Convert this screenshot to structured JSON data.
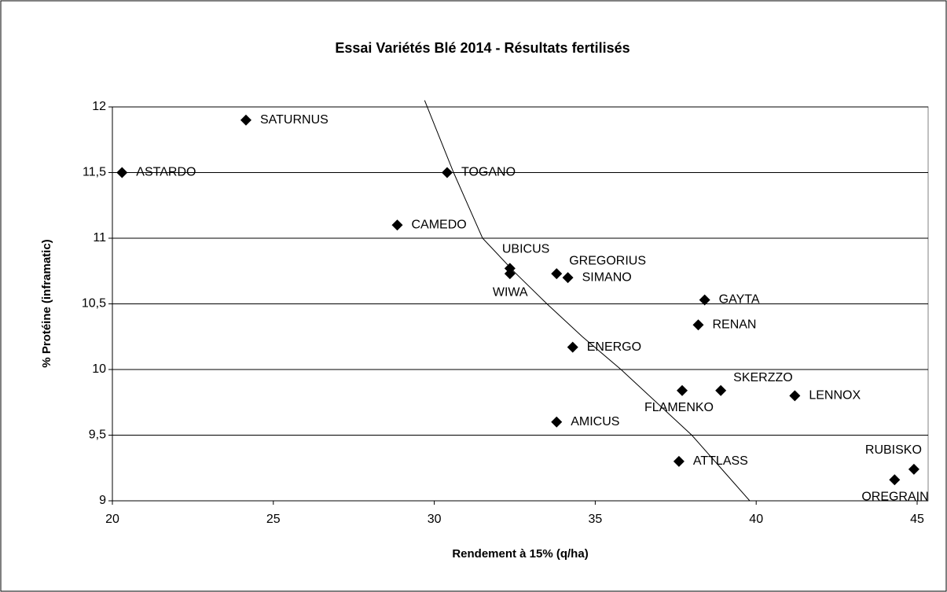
{
  "chart_data": {
    "type": "scatter",
    "title": "Essai Variétés Blé 2014 - Résultats  fertilisés",
    "x_label": "Rendement à 15% (q/ha)",
    "y_label": "% Protéine (inframatic)",
    "xlim": [
      20,
      45
    ],
    "xticks": [
      20,
      25,
      30,
      35,
      40,
      45
    ],
    "ylim": [
      9,
      12
    ],
    "yticks": [
      9,
      {
        "value": 9.5,
        "label": "9,5"
      },
      10,
      {
        "value": 10.5,
        "label": "10,5"
      },
      11,
      {
        "value": 11.5,
        "label": "11,5"
      },
      12
    ],
    "grid": true,
    "series": [
      {
        "color": "#000000",
        "labels": [
          "ASTARDO",
          "SATURNUS",
          "TOGANO",
          "CAMEDO",
          "UBICUS",
          "WIWA",
          "GREGORIUS",
          "SIMANO",
          "GAYTA",
          "RENAN",
          "ENERGO",
          "FLAMENKO",
          "SKERZZO",
          "LENNOX",
          "AMICUS",
          "ATTLASS",
          "RUBISKO",
          "OREGRAIN"
        ],
        "x": [
          20.3,
          24.15,
          30.4,
          28.85,
          32.35,
          32.35,
          33.8,
          34.15,
          38.4,
          38.2,
          34.3,
          37.7,
          38.9,
          41.2,
          33.8,
          37.6,
          44.9,
          44.3
        ],
        "values": [
          11.5,
          11.9,
          11.5,
          11.1,
          10.77,
          10.73,
          10.73,
          10.7,
          10.53,
          10.34,
          10.17,
          9.84,
          9.84,
          9.8,
          9.6,
          9.3,
          9.24,
          9.16
        ]
      }
    ],
    "trendline": {
      "color": "#000000",
      "x": [
        29.7,
        30.6,
        31.5,
        32.5,
        33.5,
        34.6,
        35.8,
        36.9,
        38.0,
        38.9,
        39.8
      ],
      "values": [
        12.05,
        11.5,
        11.0,
        10.74,
        10.5,
        10.25,
        10.0,
        9.75,
        9.5,
        9.25,
        9.0
      ]
    }
  }
}
